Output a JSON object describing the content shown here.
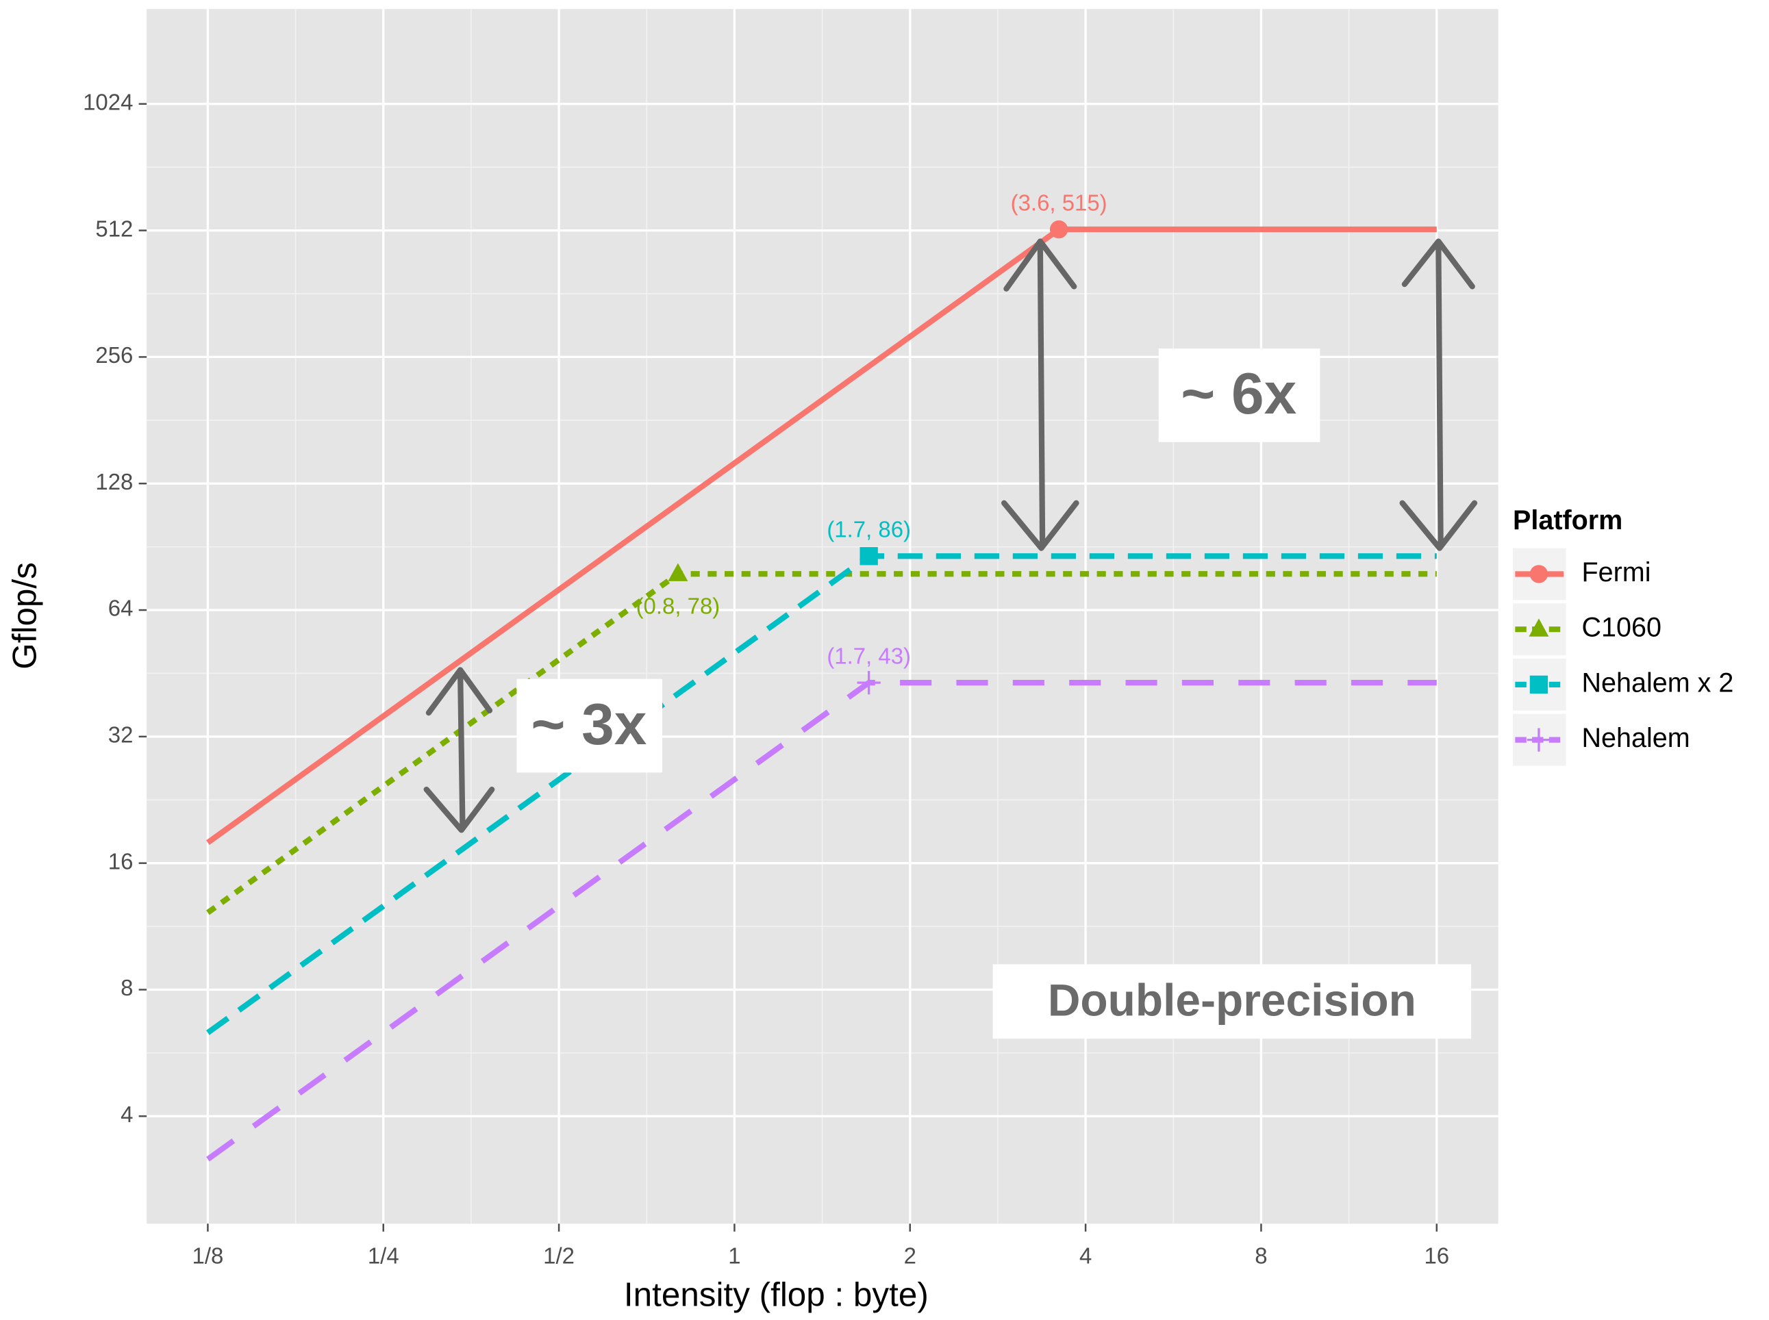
{
  "chart_data": {
    "type": "line",
    "x_label": "Intensity (flop : byte)",
    "y_label": "Gflop/s",
    "log_x": 2,
    "log_y": 2,
    "grid": true,
    "legend": "right",
    "legend_title": "Platform",
    "xlim": [
      0.0982,
      20.4
    ],
    "ylim": [
      2.22,
      1722
    ],
    "xticks": [
      {
        "value": 0.125,
        "label": "1/8"
      },
      {
        "value": 0.25,
        "label": "1/4"
      },
      {
        "value": 0.5,
        "label": "1/2"
      },
      1,
      2,
      4,
      8,
      16
    ],
    "yticks": [
      4,
      8,
      16,
      32,
      64,
      128,
      256,
      512,
      1024
    ],
    "series": [
      {
        "name": "Fermi",
        "color": "#F8766D",
        "linestyle": "solid",
        "marker": "circle",
        "x": [
          0.125,
          3.6,
          16
        ],
        "values": [
          17.9,
          515,
          515
        ],
        "value_labels": [
          null,
          "(3.6, 515)",
          null
        ]
      },
      {
        "name": "C1060",
        "color": "#7CAE00",
        "linestyle": "dotted",
        "marker": "triangle",
        "x": [
          0.125,
          0.8,
          16
        ],
        "values": [
          12.2,
          78,
          78
        ],
        "value_labels": [
          null,
          "(0.8, 78)",
          null
        ]
      },
      {
        "name": "Nehalem x 2",
        "color": "#00BFC4",
        "linestyle": "dashed",
        "marker": "square",
        "x": [
          0.125,
          1.7,
          16
        ],
        "values": [
          6.32,
          86,
          86
        ],
        "value_labels": [
          null,
          "(1.7, 86)",
          null
        ]
      },
      {
        "name": "Nehalem",
        "color": "#C77CFF",
        "linestyle": "longdash",
        "marker": "crosshair",
        "x": [
          0.125,
          1.7,
          16
        ],
        "values": [
          3.16,
          43,
          43
        ],
        "value_labels": [
          null,
          "(1.7, 43)",
          null
        ]
      }
    ],
    "annotations": [
      "~ 3x",
      "~ 6x",
      "Double-precision"
    ]
  }
}
